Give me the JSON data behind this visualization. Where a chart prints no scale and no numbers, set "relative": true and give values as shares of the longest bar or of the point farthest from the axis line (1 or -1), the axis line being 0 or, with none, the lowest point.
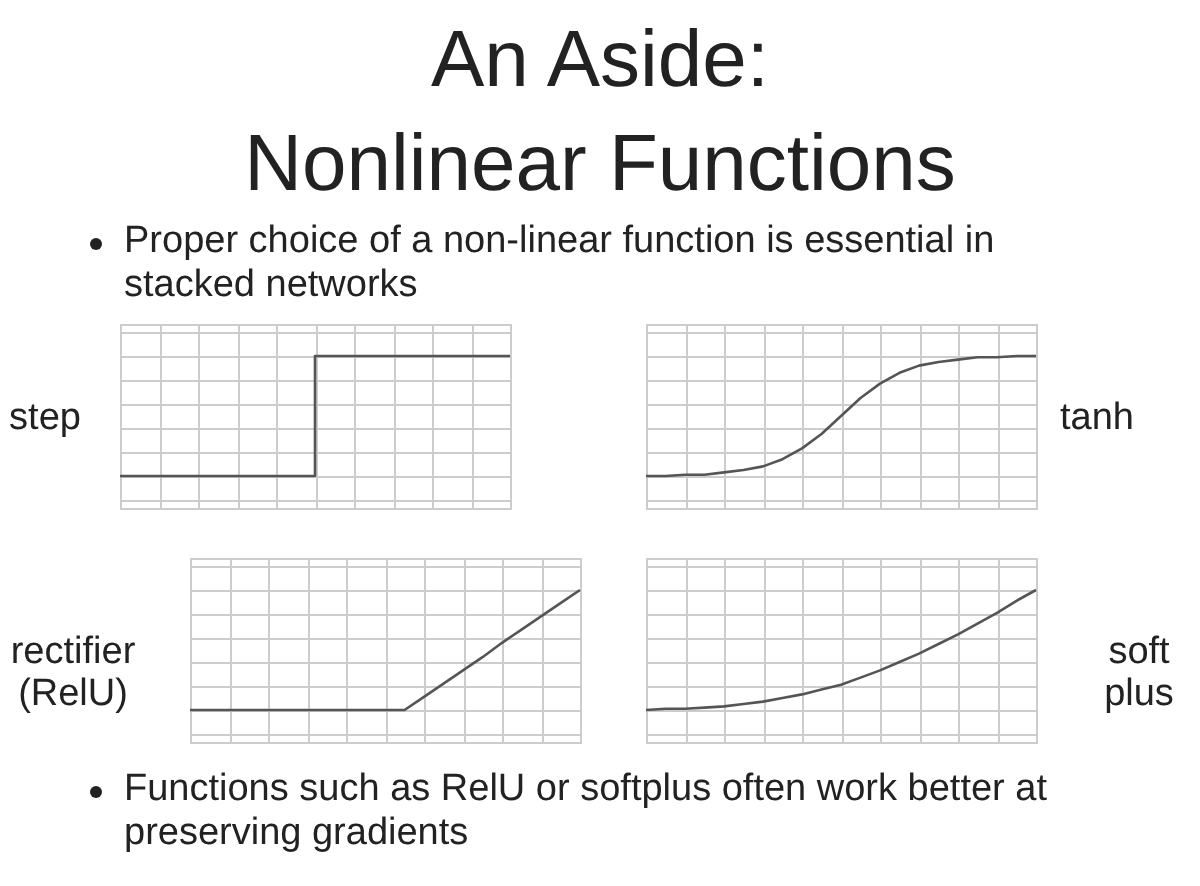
{
  "chart_data": [
    {
      "type": "other",
      "title": "An Aside: Nonlinear Functions",
      "annotations": [
        "Proper choice of a non-linear function is essential in stacked networks",
        "Functions such as RelU or softplus often work better at preserving gradients"
      ]
    },
    {
      "type": "step",
      "ylabel": "step",
      "relative": true,
      "grid": true,
      "color": "#555555",
      "categories": [
        null,
        null,
        null,
        null,
        null,
        null,
        null,
        null,
        null,
        null,
        null
      ],
      "values": [
        0,
        0,
        0,
        0,
        0,
        1,
        1,
        1,
        1,
        1,
        1
      ]
    },
    {
      "type": "line",
      "ylabel": "tanh",
      "relative": true,
      "grid": true,
      "color": "#555555",
      "categories": [
        null,
        null,
        null,
        null,
        null,
        null,
        null,
        null,
        null,
        null,
        null,
        null,
        null,
        null,
        null,
        null,
        null,
        null,
        null,
        null,
        null
      ],
      "values": [
        0,
        0,
        0.01,
        0.01,
        0.03,
        0.05,
        0.08,
        0.14,
        0.23,
        0.35,
        0.5,
        0.65,
        0.77,
        0.86,
        0.92,
        0.95,
        0.97,
        0.99,
        0.99,
        1,
        1
      ]
    },
    {
      "type": "line",
      "ylabel": "rectifier (RelU)",
      "relative": true,
      "grid": true,
      "color": "#555555",
      "categories": [
        null,
        null,
        null,
        null,
        null,
        null,
        null,
        null,
        null,
        null,
        null,
        null,
        null,
        null,
        null,
        null,
        null,
        null,
        null,
        null,
        null
      ],
      "values": [
        0,
        0,
        0,
        0,
        0,
        0,
        0,
        0,
        0,
        0,
        0,
        0,
        0.11,
        0.22,
        0.33,
        0.44,
        0.56,
        0.67,
        0.78,
        0.89,
        1
      ]
    },
    {
      "type": "line",
      "ylabel": "soft plus",
      "relative": true,
      "grid": true,
      "color": "#555555",
      "categories": [
        null,
        null,
        null,
        null,
        null,
        null,
        null,
        null,
        null,
        null,
        null,
        null,
        null,
        null,
        null,
        null,
        null,
        null,
        null,
        null,
        null
      ],
      "values": [
        0,
        0.01,
        0.01,
        0.02,
        0.03,
        0.05,
        0.07,
        0.1,
        0.13,
        0.17,
        0.21,
        0.27,
        0.33,
        0.4,
        0.47,
        0.55,
        0.63,
        0.72,
        0.81,
        0.91,
        1
      ]
    }
  ]
}
